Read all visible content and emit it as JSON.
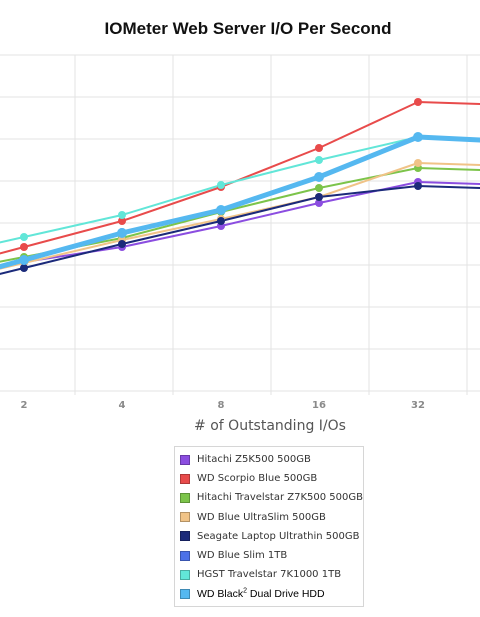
{
  "chart_data": {
    "type": "line",
    "title": "IOMeter Web Server I/O Per Second",
    "xlabel": "# of Outstanding I/Os",
    "ylabel": "",
    "categories": [
      "2",
      "4",
      "8",
      "16",
      "32"
    ],
    "grid": true,
    "legend_position": "bottom",
    "series": [
      {
        "name": "Hitachi Z5K500 500GB",
        "color": "#8b4de0",
        "values": [
          262,
          247,
          226,
          203,
          182
        ]
      },
      {
        "name": "WD Scorpio Blue 500GB",
        "color": "#e84b4b",
        "values": [
          247,
          221,
          187,
          148,
          102
        ]
      },
      {
        "name": "Hitachi Travelstar Z7K500 500GB",
        "color": "#7cc44a",
        "values": [
          257,
          238,
          212,
          188,
          168
        ]
      },
      {
        "name": "WD Blue UltraSlim 500GB",
        "color": "#f0c387",
        "values": [
          263,
          240,
          219,
          197,
          163
        ]
      },
      {
        "name": "Seagate Laptop Ultrathin 500GB",
        "color": "#1b2a7a",
        "values": [
          268,
          244,
          221,
          197,
          186
        ]
      },
      {
        "name": "WD Blue Slim 1TB",
        "color": "#4d72e8",
        "values": [
          261,
          232,
          210,
          177,
          137
        ]
      },
      {
        "name": "HGST Travelstar 7K1000 1TB",
        "color": "#62e6d8",
        "values": [
          237,
          215,
          185,
          160,
          137
        ]
      },
      {
        "name": "WD Black2 Dual Drive HDD",
        "color": "#55b8f0",
        "values": [
          260,
          233,
          210,
          177,
          137
        ]
      }
    ]
  },
  "legend": {
    "items": [
      {
        "label": "Hitachi Z5K500 500GB",
        "color": "#8b4de0"
      },
      {
        "label": "WD Scorpio Blue 500GB",
        "color": "#e84b4b"
      },
      {
        "label": "Hitachi Travelstar Z7K500 500GB",
        "color": "#7cc44a"
      },
      {
        "label": "WD Blue UltraSlim 500GB",
        "color": "#f0c387"
      },
      {
        "label": "Seagate Laptop Ultrathin 500GB",
        "color": "#1b2a7a"
      },
      {
        "label": "WD Blue Slim 1TB",
        "color": "#4d72e8"
      },
      {
        "label": "HGST Travelstar 7K1000 1TB",
        "color": "#62e6d8"
      }
    ],
    "last": {
      "label_main": "WD Black",
      "label_sup": "2",
      "label_rest": " Dual Drive HDD",
      "color": "#55b8f0"
    }
  }
}
